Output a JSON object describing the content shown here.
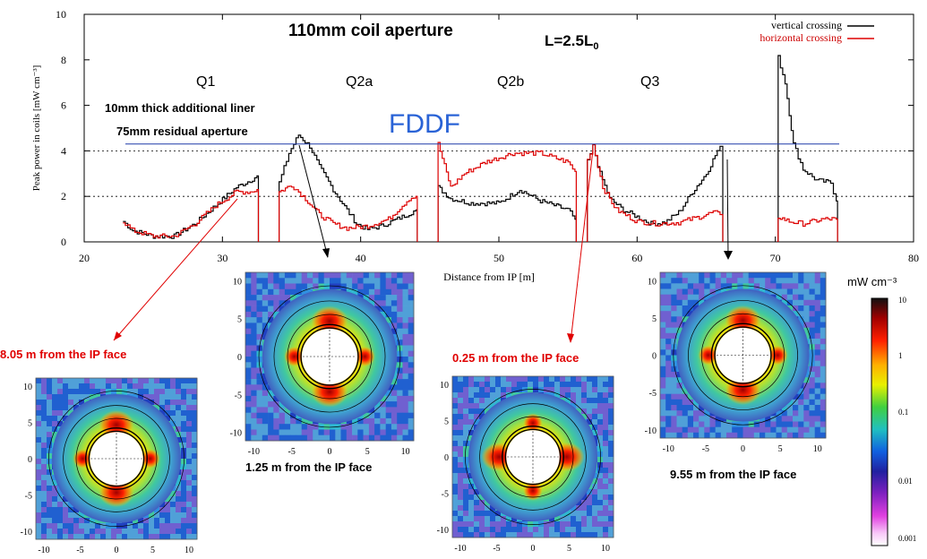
{
  "chart_data": [
    {
      "type": "line",
      "title": "110mm  coil aperture",
      "subtitle": "L=2.5L",
      "subtitle_sub": "0",
      "xlabel": "Distance from IP [m]",
      "ylabel": "Peak power in coils [mW cm⁻³]",
      "xlim": [
        20,
        80
      ],
      "ylim": [
        0,
        10
      ],
      "x_ticks": [
        "20",
        "30",
        "40",
        "50",
        "60",
        "70",
        "80"
      ],
      "y_ticks": [
        "0",
        "2",
        "4",
        "6",
        "8",
        "10"
      ],
      "grid_y_dashed": [
        2,
        4
      ],
      "legend_position": "top-right",
      "magnet_labels": [
        "Q1",
        "Q2a",
        "Q2b",
        "Q3"
      ],
      "annotations": [
        "10mm thick additional liner",
        "75mm residual aperture",
        "FDDF"
      ],
      "reference_line_y": 4.3,
      "series": [
        {
          "name": "vertical crossing",
          "color": "#000000",
          "segments": [
            [
              [
                22.8,
                0.9
              ],
              [
                23.5,
                0.5
              ],
              [
                25,
                0.25
              ],
              [
                26.5,
                0.25
              ],
              [
                28,
                0.8
              ],
              [
                29.5,
                1.6
              ],
              [
                31,
                2.4
              ],
              [
                32,
                2.7
              ],
              [
                32.5,
                2.9
              ],
              [
                32.6,
                0
              ]
            ],
            [
              [
                34,
                0
              ],
              [
                34.1,
                2.6
              ],
              [
                34.8,
                3.9
              ],
              [
                35.5,
                4.7
              ],
              [
                36.3,
                4.2
              ],
              [
                37,
                3.3
              ],
              [
                38,
                2.3
              ],
              [
                39,
                1.4
              ],
              [
                39.7,
                0.8
              ],
              [
                40.5,
                0.55
              ],
              [
                41.5,
                0.7
              ],
              [
                43,
                1.1
              ],
              [
                44,
                1.4
              ],
              [
                44.1,
                0
              ]
            ],
            [
              [
                45.5,
                0
              ],
              [
                45.6,
                2.4
              ],
              [
                46.5,
                1.9
              ],
              [
                48,
                1.7
              ],
              [
                50,
                1.7
              ],
              [
                51.5,
                2.3
              ],
              [
                53,
                1.8
              ],
              [
                55,
                1.4
              ],
              [
                55.5,
                1.0
              ],
              [
                55.6,
                0
              ]
            ],
            [
              [
                56.3,
                0
              ],
              [
                56.4,
                3.5
              ],
              [
                56.8,
                4.2
              ],
              [
                57.3,
                3.0
              ],
              [
                58,
                1.9
              ],
              [
                59,
                1.4
              ],
              [
                60,
                1.1
              ],
              [
                61,
                0.8
              ],
              [
                62,
                0.85
              ],
              [
                63,
                1.3
              ],
              [
                64,
                2.2
              ],
              [
                65,
                3.0
              ],
              [
                65.8,
                4.0
              ],
              [
                66,
                4.2
              ],
              [
                66.2,
                0
              ]
            ],
            [
              [
                70.1,
                0
              ],
              [
                70.2,
                8.1
              ],
              [
                70.7,
                7.0
              ],
              [
                71.3,
                4.3
              ],
              [
                72,
                3.2
              ],
              [
                73,
                2.7
              ],
              [
                74,
                2.6
              ],
              [
                74.4,
                1.8
              ],
              [
                74.5,
                0
              ]
            ]
          ]
        },
        {
          "name": "horizontal crossing",
          "color": "#dd0000",
          "segments": [
            [
              [
                22.8,
                0.9
              ],
              [
                23.5,
                0.5
              ],
              [
                25,
                0.25
              ],
              [
                26.5,
                0.25
              ],
              [
                28,
                0.8
              ],
              [
                29.5,
                1.6
              ],
              [
                31,
                2.2
              ],
              [
                32,
                2.2
              ],
              [
                32.5,
                2.3
              ],
              [
                32.6,
                0
              ]
            ],
            [
              [
                34,
                0
              ],
              [
                34.1,
                2.2
              ],
              [
                35,
                2.5
              ],
              [
                36,
                1.9
              ],
              [
                37,
                1.2
              ],
              [
                38,
                0.8
              ],
              [
                39,
                0.6
              ],
              [
                40.5,
                0.7
              ],
              [
                42,
                1.0
              ],
              [
                43.5,
                1.9
              ],
              [
                44,
                2.0
              ],
              [
                44.1,
                0
              ]
            ],
            [
              [
                45.5,
                0
              ],
              [
                45.6,
                4.3
              ],
              [
                46.5,
                2.4
              ],
              [
                47.5,
                3.0
              ],
              [
                49,
                3.5
              ],
              [
                51,
                3.9
              ],
              [
                53,
                3.9
              ],
              [
                55,
                3.5
              ],
              [
                55.5,
                3.1
              ],
              [
                55.6,
                0
              ]
            ],
            [
              [
                56.3,
                0
              ],
              [
                56.4,
                3.6
              ],
              [
                56.8,
                4.3
              ],
              [
                57.5,
                2.4
              ],
              [
                58.5,
                1.4
              ],
              [
                60,
                0.9
              ],
              [
                61.5,
                0.8
              ],
              [
                63,
                0.85
              ],
              [
                64.5,
                1.1
              ],
              [
                65.5,
                1.3
              ],
              [
                66,
                1.2
              ],
              [
                66.2,
                0
              ]
            ],
            [
              [
                70.1,
                0
              ],
              [
                70.2,
                1.1
              ],
              [
                71,
                0.9
              ],
              [
                72,
                0.8
              ],
              [
                73.5,
                1.0
              ],
              [
                74.4,
                1.0
              ],
              [
                74.5,
                0
              ]
            ]
          ]
        }
      ]
    },
    {
      "type": "heatmap",
      "title": "mW cm⁻³",
      "colorbar_ticks": [
        "10",
        "1",
        "0.1",
        "0.01",
        "0.001"
      ],
      "scale": "log",
      "panels": [
        {
          "caption": "8.05 m from the IP face",
          "caption_color": "#e00000",
          "x_ticks": [
            "-10",
            "-5",
            "0",
            "5",
            "10"
          ],
          "y_ticks": [
            "10",
            "5",
            "0",
            "-5",
            "-10"
          ],
          "hot_axis": "vertical",
          "pointer_from_x_m": 31
        },
        {
          "caption": "1.25 m from the IP face",
          "caption_color": "#000000",
          "x_ticks": [
            "-10",
            "-5",
            "0",
            "5",
            "10"
          ],
          "y_ticks": [
            "10",
            "5",
            "0",
            "-5",
            "-10"
          ],
          "hot_axis": "vertical",
          "pointer_from_x_m": 35
        },
        {
          "caption": "0.25 m from the IP face",
          "caption_color": "#e00000",
          "x_ticks": [
            "-10",
            "-5",
            "0",
            "5",
            "10"
          ],
          "y_ticks": [
            "10",
            "5",
            "0",
            "-5",
            "-10"
          ],
          "hot_axis": "horizontal",
          "pointer_from_x_m": 56.8
        },
        {
          "caption": "9.55 m from the IP face",
          "caption_color": "#000000",
          "x_ticks": [
            "-10",
            "-5",
            "0",
            "5",
            "10"
          ],
          "y_ticks": [
            "10",
            "5",
            "0",
            "-5",
            "-10"
          ],
          "hot_axis": "vertical",
          "pointer_from_x_m": 66
        }
      ]
    }
  ]
}
